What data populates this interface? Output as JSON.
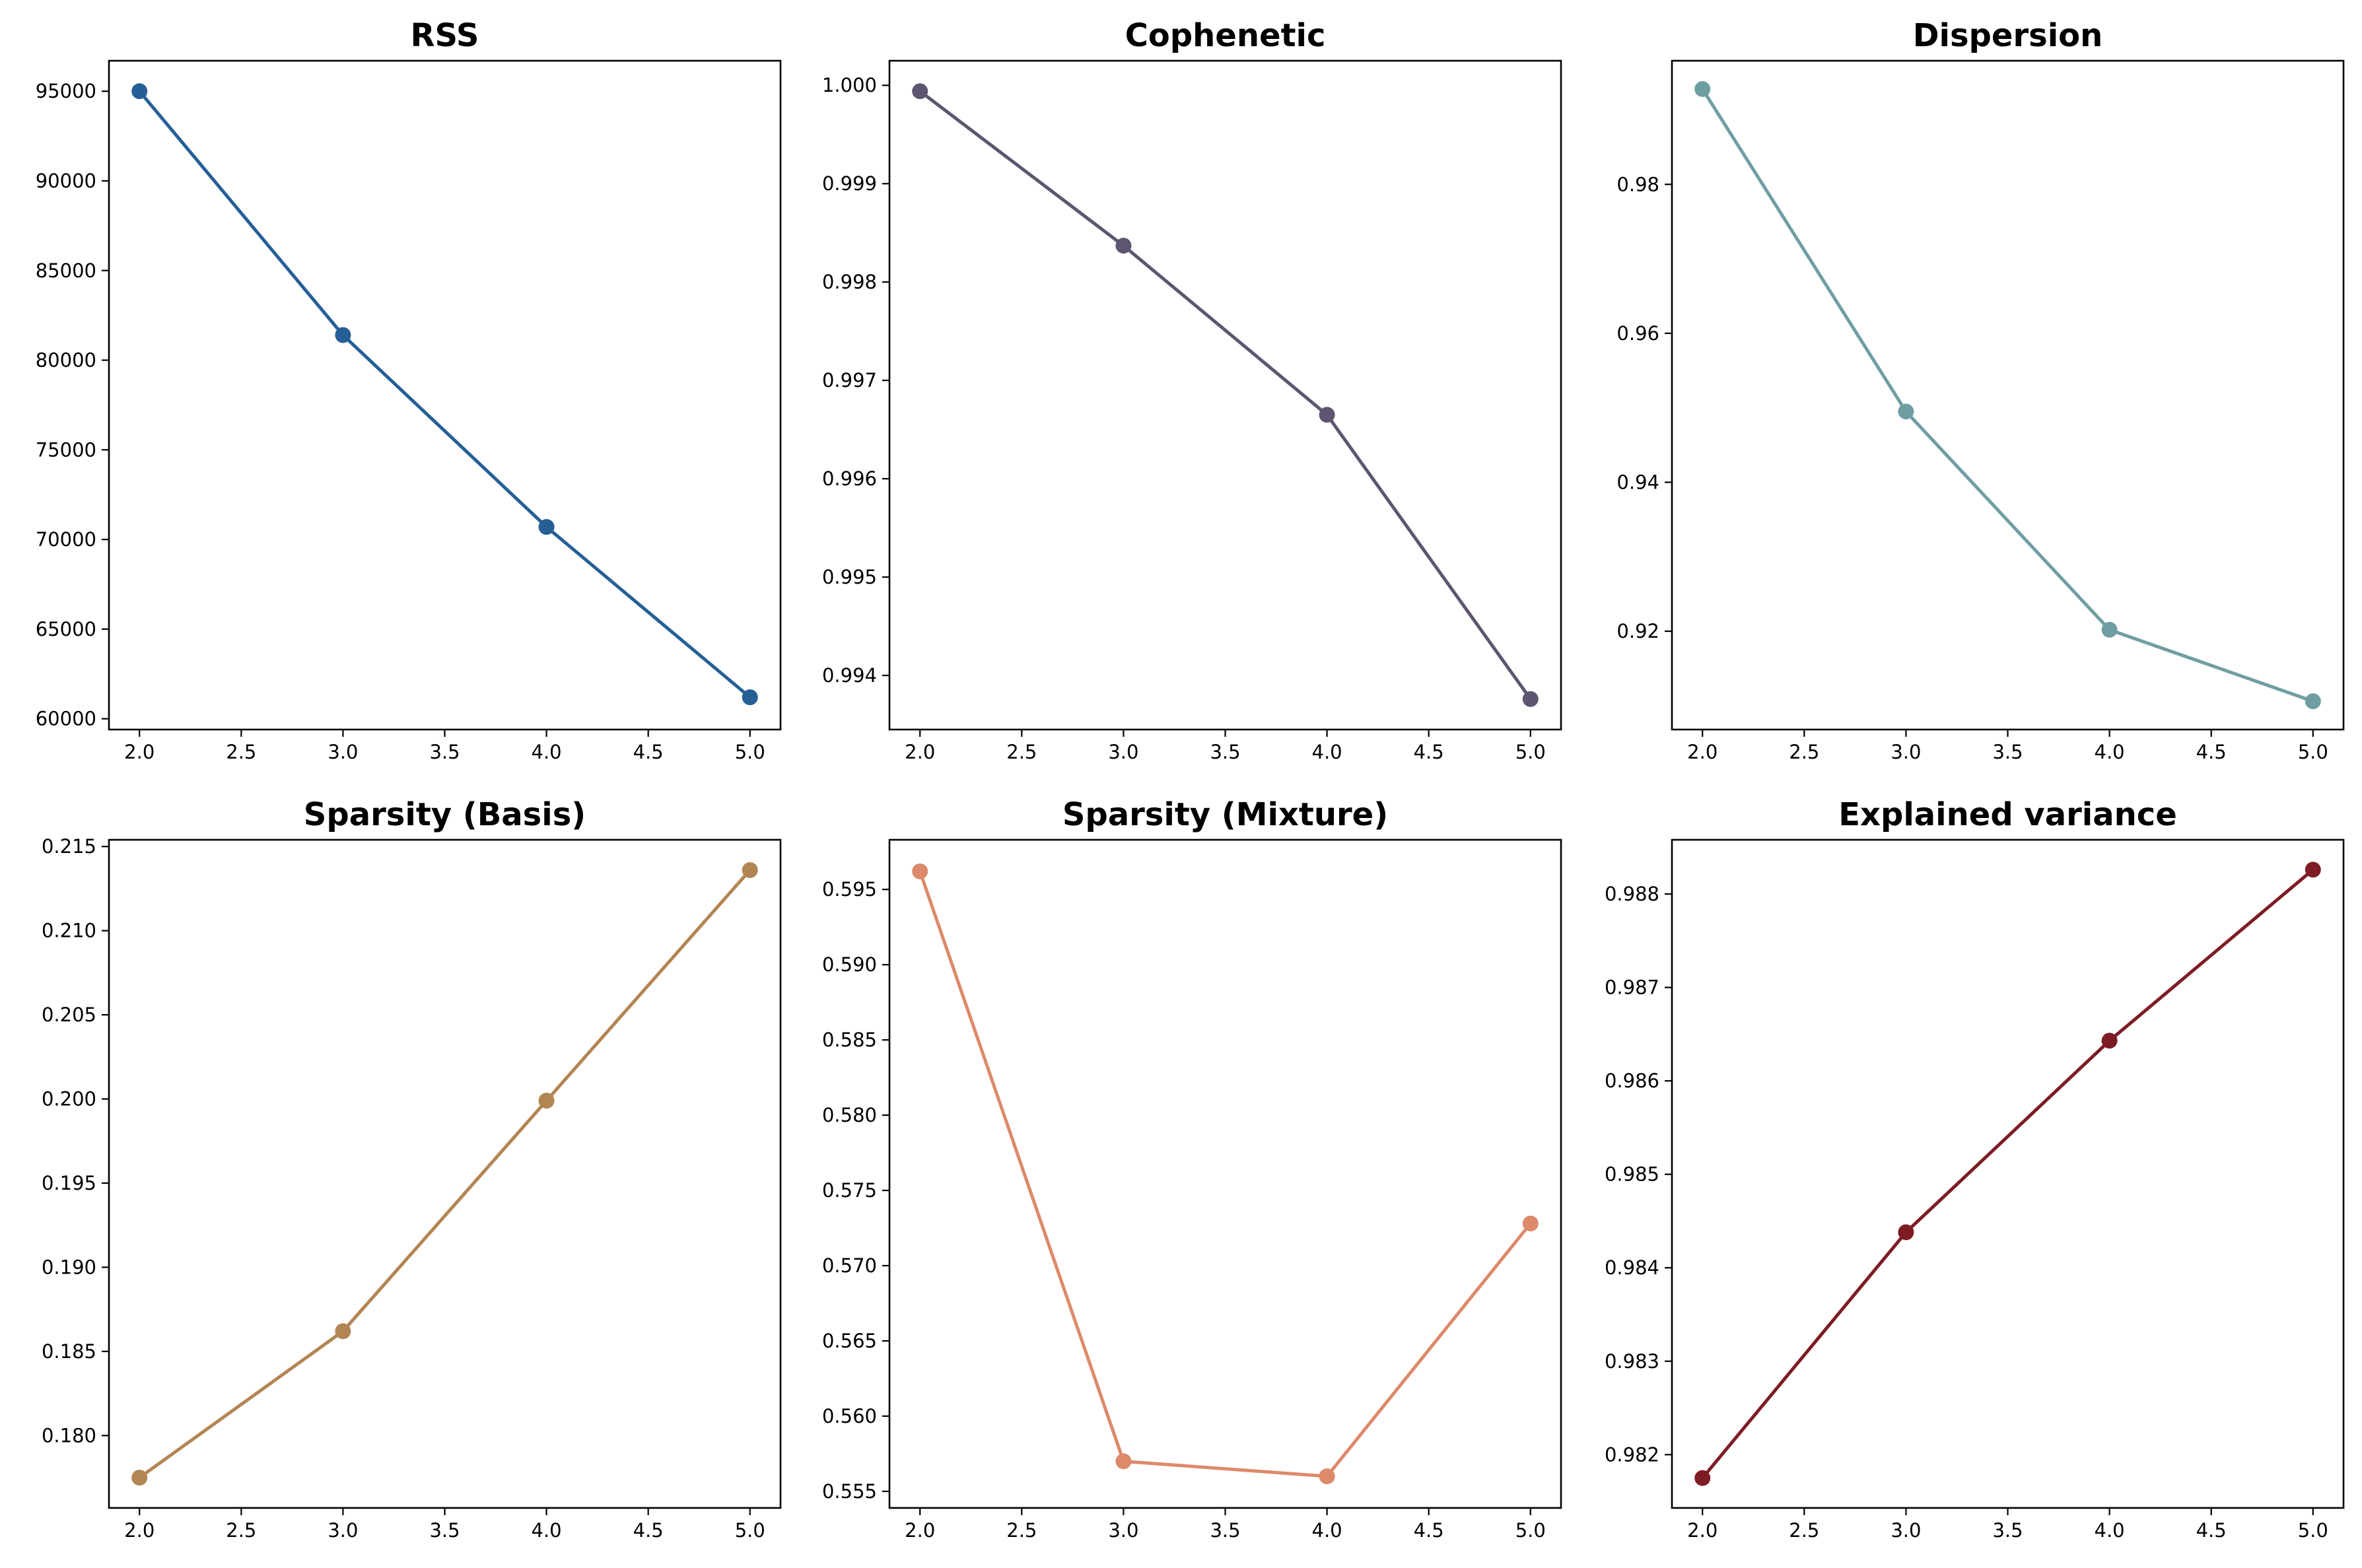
{
  "chart_data": [
    {
      "type": "line",
      "title": "RSS",
      "xlabel": "",
      "ylabel": "",
      "x": [
        2,
        3,
        4,
        5
      ],
      "series": [
        {
          "values": [
            95000,
            81400,
            70700,
            61200
          ],
          "color": "#255f96"
        }
      ],
      "xlim": [
        1.85,
        5.15
      ],
      "ylim": [
        59400,
        96700
      ],
      "xticks": [
        2.0,
        2.5,
        3.0,
        3.5,
        4.0,
        4.5,
        5.0
      ],
      "xtick_labels": [
        "2.0",
        "2.5",
        "3.0",
        "3.5",
        "4.0",
        "4.5",
        "5.0"
      ],
      "yticks": [
        60000,
        65000,
        70000,
        75000,
        80000,
        85000,
        90000,
        95000
      ],
      "ytick_labels": [
        "60000",
        "65000",
        "70000",
        "75000",
        "80000",
        "85000",
        "90000",
        "95000"
      ],
      "grid": false
    },
    {
      "type": "line",
      "title": "Cophenetic",
      "xlabel": "",
      "ylabel": "",
      "x": [
        2,
        3,
        4,
        5
      ],
      "series": [
        {
          "values": [
            0.99994,
            0.99837,
            0.99665,
            0.99376
          ],
          "color": "#5e5570"
        }
      ],
      "xlim": [
        1.85,
        5.15
      ],
      "ylim": [
        0.99345,
        1.00025
      ],
      "xticks": [
        2.0,
        2.5,
        3.0,
        3.5,
        4.0,
        4.5,
        5.0
      ],
      "xtick_labels": [
        "2.0",
        "2.5",
        "3.0",
        "3.5",
        "4.0",
        "4.5",
        "5.0"
      ],
      "yticks": [
        0.994,
        0.995,
        0.996,
        0.997,
        0.998,
        0.999,
        1.0
      ],
      "ytick_labels": [
        "0.994",
        "0.995",
        "0.996",
        "0.997",
        "0.998",
        "0.999",
        "1.000"
      ],
      "grid": false
    },
    {
      "type": "line",
      "title": "Dispersion",
      "xlabel": "",
      "ylabel": "",
      "x": [
        2,
        3,
        4,
        5
      ],
      "series": [
        {
          "values": [
            0.9928,
            0.9495,
            0.9202,
            0.9106
          ],
          "color": "#6f9ea2"
        }
      ],
      "xlim": [
        1.85,
        5.15
      ],
      "ylim": [
        0.9068,
        0.9966
      ],
      "xticks": [
        2.0,
        2.5,
        3.0,
        3.5,
        4.0,
        4.5,
        5.0
      ],
      "xtick_labels": [
        "2.0",
        "2.5",
        "3.0",
        "3.5",
        "4.0",
        "4.5",
        "5.0"
      ],
      "yticks": [
        0.92,
        0.94,
        0.96,
        0.98
      ],
      "ytick_labels": [
        "0.92",
        "0.94",
        "0.96",
        "0.98"
      ],
      "grid": false
    },
    {
      "type": "line",
      "title": "Sparsity (Basis)",
      "xlabel": "",
      "ylabel": "",
      "x": [
        2,
        3,
        4,
        5
      ],
      "series": [
        {
          "values": [
            0.1775,
            0.1862,
            0.1999,
            0.2136
          ],
          "color": "#b38553"
        }
      ],
      "xlim": [
        1.85,
        5.15
      ],
      "ylim": [
        0.1757,
        0.2154
      ],
      "xticks": [
        2.0,
        2.5,
        3.0,
        3.5,
        4.0,
        4.5,
        5.0
      ],
      "xtick_labels": [
        "2.0",
        "2.5",
        "3.0",
        "3.5",
        "4.0",
        "4.5",
        "5.0"
      ],
      "yticks": [
        0.18,
        0.185,
        0.19,
        0.195,
        0.2,
        0.205,
        0.21,
        0.215
      ],
      "ytick_labels": [
        "0.180",
        "0.185",
        "0.190",
        "0.195",
        "0.200",
        "0.205",
        "0.210",
        "0.215"
      ],
      "grid": false
    },
    {
      "type": "line",
      "title": "Sparsity (Mixture)",
      "xlabel": "",
      "ylabel": "",
      "x": [
        2,
        3,
        4,
        5
      ],
      "series": [
        {
          "values": [
            0.5962,
            0.557,
            0.556,
            0.5728
          ],
          "color": "#dc8a6a"
        }
      ],
      "xlim": [
        1.85,
        5.15
      ],
      "ylim": [
        0.5539,
        0.5983
      ],
      "xticks": [
        2.0,
        2.5,
        3.0,
        3.5,
        4.0,
        4.5,
        5.0
      ],
      "xtick_labels": [
        "2.0",
        "2.5",
        "3.0",
        "3.5",
        "4.0",
        "4.5",
        "5.0"
      ],
      "yticks": [
        0.555,
        0.56,
        0.565,
        0.57,
        0.575,
        0.58,
        0.585,
        0.59,
        0.595
      ],
      "ytick_labels": [
        "0.555",
        "0.560",
        "0.565",
        "0.570",
        "0.575",
        "0.580",
        "0.585",
        "0.590",
        "0.595"
      ],
      "grid": false
    },
    {
      "type": "line",
      "title": "Explained variance",
      "xlabel": "",
      "ylabel": "",
      "x": [
        2,
        3,
        4,
        5
      ],
      "series": [
        {
          "values": [
            0.98175,
            0.98438,
            0.98643,
            0.98826
          ],
          "color": "#7d1c24"
        }
      ],
      "xlim": [
        1.85,
        5.15
      ],
      "ylim": [
        0.98143,
        0.98858
      ],
      "xticks": [
        2.0,
        2.5,
        3.0,
        3.5,
        4.0,
        4.5,
        5.0
      ],
      "xtick_labels": [
        "2.0",
        "2.5",
        "3.0",
        "3.5",
        "4.0",
        "4.5",
        "5.0"
      ],
      "yticks": [
        0.982,
        0.983,
        0.984,
        0.985,
        0.986,
        0.987,
        0.988
      ],
      "ytick_labels": [
        "0.982",
        "0.983",
        "0.984",
        "0.985",
        "0.986",
        "0.987",
        "0.988"
      ],
      "grid": false
    }
  ]
}
